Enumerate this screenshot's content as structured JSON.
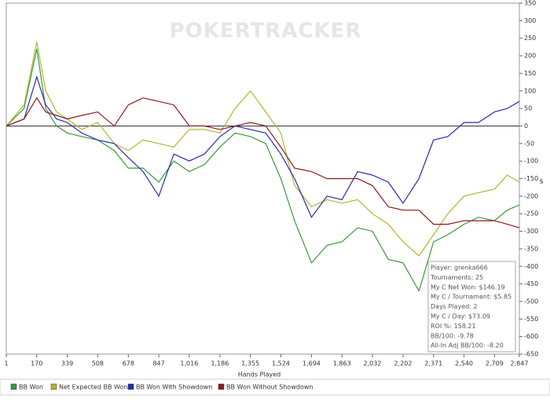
{
  "chart_data": {
    "type": "line",
    "watermark": "POKERTRACKER",
    "x_label": "Hands Played",
    "y_label": "$",
    "x": [
      1,
      100,
      170,
      220,
      280,
      339,
      420,
      508,
      600,
      678,
      760,
      847,
      930,
      1016,
      1100,
      1186,
      1270,
      1355,
      1440,
      1524,
      1600,
      1694,
      1780,
      1863,
      1950,
      2032,
      2120,
      2202,
      2290,
      2371,
      2450,
      2540,
      2620,
      2709,
      2780,
      2847
    ],
    "series": [
      {
        "name": "BB Won",
        "color": "#3a9a3a",
        "values": [
          0,
          50,
          220,
          50,
          0,
          -20,
          -30,
          -40,
          -70,
          -120,
          -120,
          -160,
          -100,
          -130,
          -110,
          -60,
          -20,
          -30,
          -50,
          -150,
          -270,
          -390,
          -340,
          -330,
          -290,
          -300,
          -380,
          -390,
          -470,
          -330,
          -310,
          -280,
          -260,
          -270,
          -240,
          -225
        ]
      },
      {
        "name": "Net Expected BB Won",
        "color": "#b5b530",
        "values": [
          0,
          60,
          240,
          100,
          40,
          20,
          -10,
          10,
          -50,
          -70,
          -40,
          -50,
          -60,
          -10,
          -10,
          -20,
          50,
          100,
          40,
          -20,
          -170,
          -230,
          -210,
          -220,
          -210,
          -250,
          -280,
          -330,
          -370,
          -310,
          -250,
          -200,
          -190,
          -180,
          -140,
          -160
        ]
      },
      {
        "name": "BB Won With Showdown",
        "color": "#2b2bb0",
        "values": [
          0,
          20,
          140,
          60,
          20,
          10,
          -20,
          -40,
          -50,
          -90,
          -130,
          -200,
          -80,
          -100,
          -80,
          -30,
          0,
          -10,
          -20,
          -80,
          -150,
          -260,
          -200,
          -210,
          -130,
          -140,
          -160,
          -220,
          -150,
          -40,
          -30,
          10,
          10,
          40,
          50,
          70
        ]
      },
      {
        "name": "BB Won Without Showdown",
        "color": "#8b1a1a",
        "values": [
          0,
          20,
          80,
          40,
          30,
          20,
          30,
          40,
          0,
          60,
          80,
          70,
          60,
          0,
          0,
          -10,
          0,
          10,
          0,
          -60,
          -120,
          -130,
          -150,
          -150,
          -150,
          -170,
          -230,
          -240,
          -240,
          -280,
          -280,
          -270,
          -270,
          -270,
          -280,
          -290
        ]
      }
    ],
    "xlim": [
      1,
      2847
    ],
    "xticks": [
      1,
      170,
      339,
      508,
      678,
      847,
      {
        "value": 1016,
        "label": "1,016"
      },
      {
        "value": 1186,
        "label": "1,186"
      },
      {
        "value": 1355,
        "label": "1,355"
      },
      {
        "value": 1524,
        "label": "1,524"
      },
      {
        "value": 1694,
        "label": "1,694"
      },
      {
        "value": 1863,
        "label": "1,863"
      },
      {
        "value": 2032,
        "label": "2,032"
      },
      {
        "value": 2202,
        "label": "2,202"
      },
      {
        "value": 2371,
        "label": "2,371"
      },
      {
        "value": 2540,
        "label": "2,540"
      },
      {
        "value": 2709,
        "label": "2,709"
      },
      {
        "value": 2847,
        "label": "2,847"
      }
    ],
    "ylim": [
      -650,
      350
    ],
    "yticks": [
      -650,
      -600,
      -550,
      -500,
      -450,
      -400,
      -350,
      -300,
      -250,
      -200,
      -150,
      -100,
      -50,
      0,
      50,
      100,
      150,
      200,
      250,
      300,
      350
    ],
    "stats": [
      "Player: grenka666",
      "Tournaments: 25",
      "My C Net Won: $146.19",
      "My C / Tournament: $5.85",
      "Days Played: 2",
      "My C / Day: $73.09",
      "ROI %: 158.21",
      "BB/100: -9.78",
      "All-In Adj BB/100: -8.20"
    ]
  }
}
